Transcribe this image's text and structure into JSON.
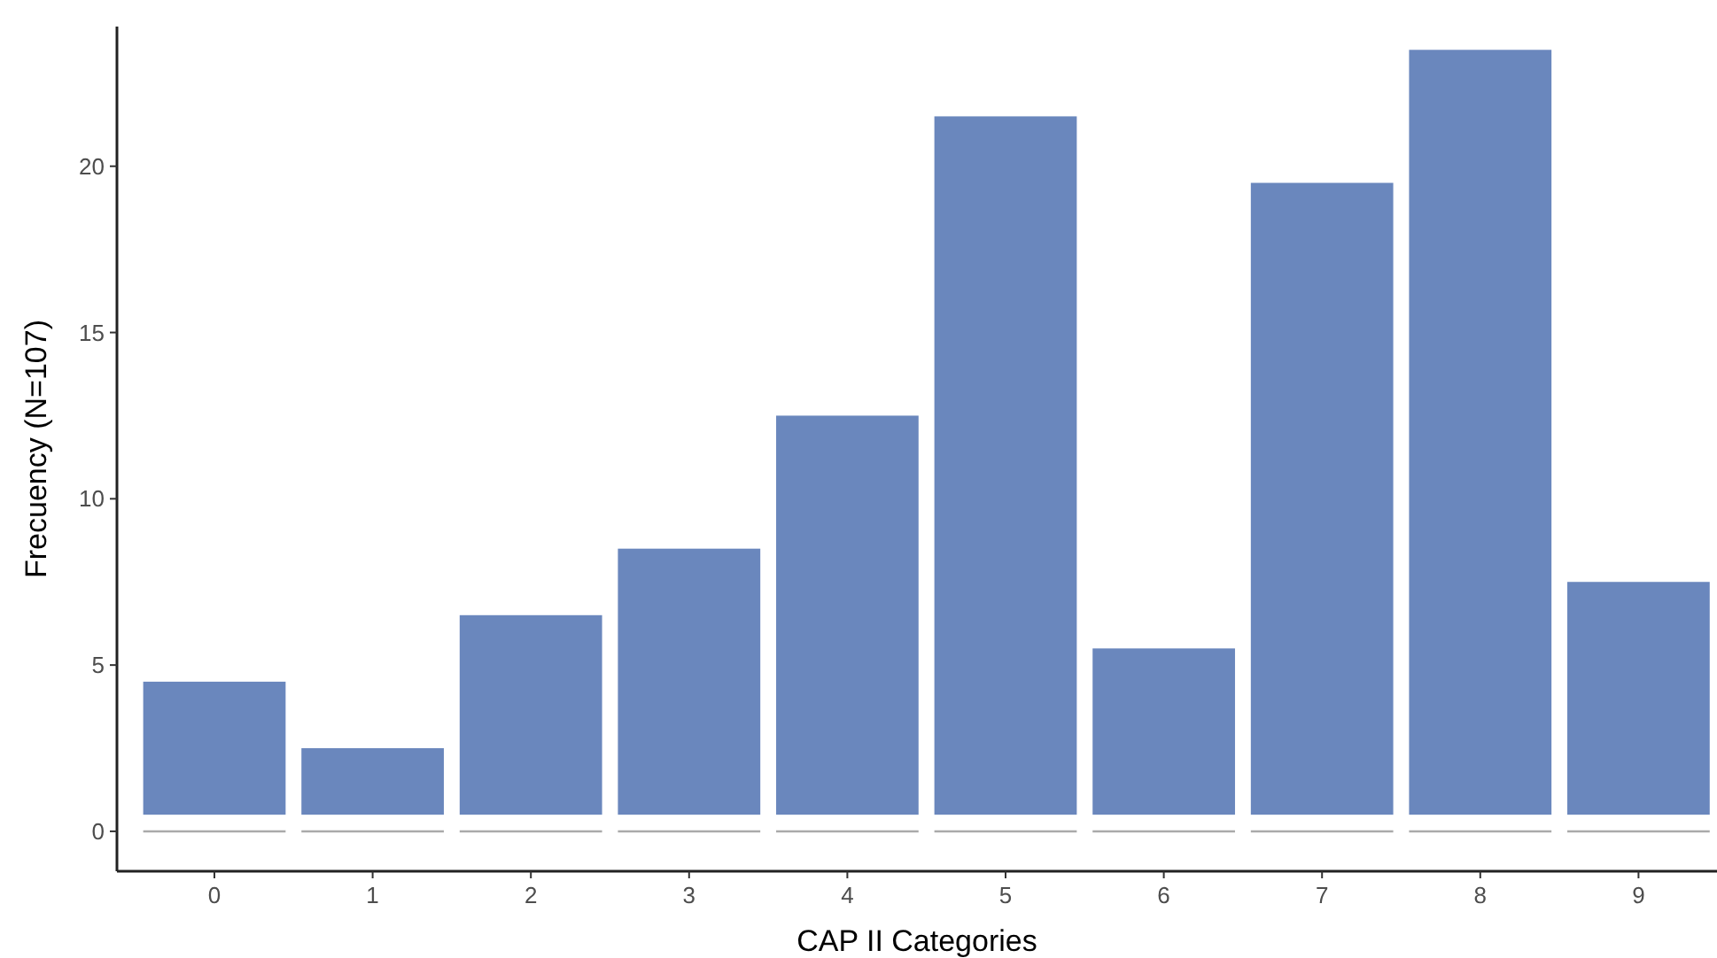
{
  "chart_data": {
    "type": "bar",
    "xlabel": "CAP II Categories",
    "ylabel": "Frecuency (N=107)",
    "categories": [
      "0",
      "1",
      "2",
      "3",
      "4",
      "5",
      "6",
      "7",
      "8",
      "9"
    ],
    "values": [
      4,
      2,
      6,
      8,
      12,
      21,
      5,
      19,
      23,
      7
    ],
    "base": [
      0.5,
      0.5,
      0.5,
      0.5,
      0.5,
      0.5,
      0.5,
      0.5,
      0.5,
      0.5
    ],
    "color": "#6a87bd",
    "ylim": [
      -1.2,
      24.2
    ],
    "yticks": [
      0,
      5,
      10,
      15,
      20
    ],
    "ref_lines": [
      {
        "axis": "y",
        "value": 0,
        "color": "#aaaaaa"
      }
    ],
    "grid": false
  }
}
